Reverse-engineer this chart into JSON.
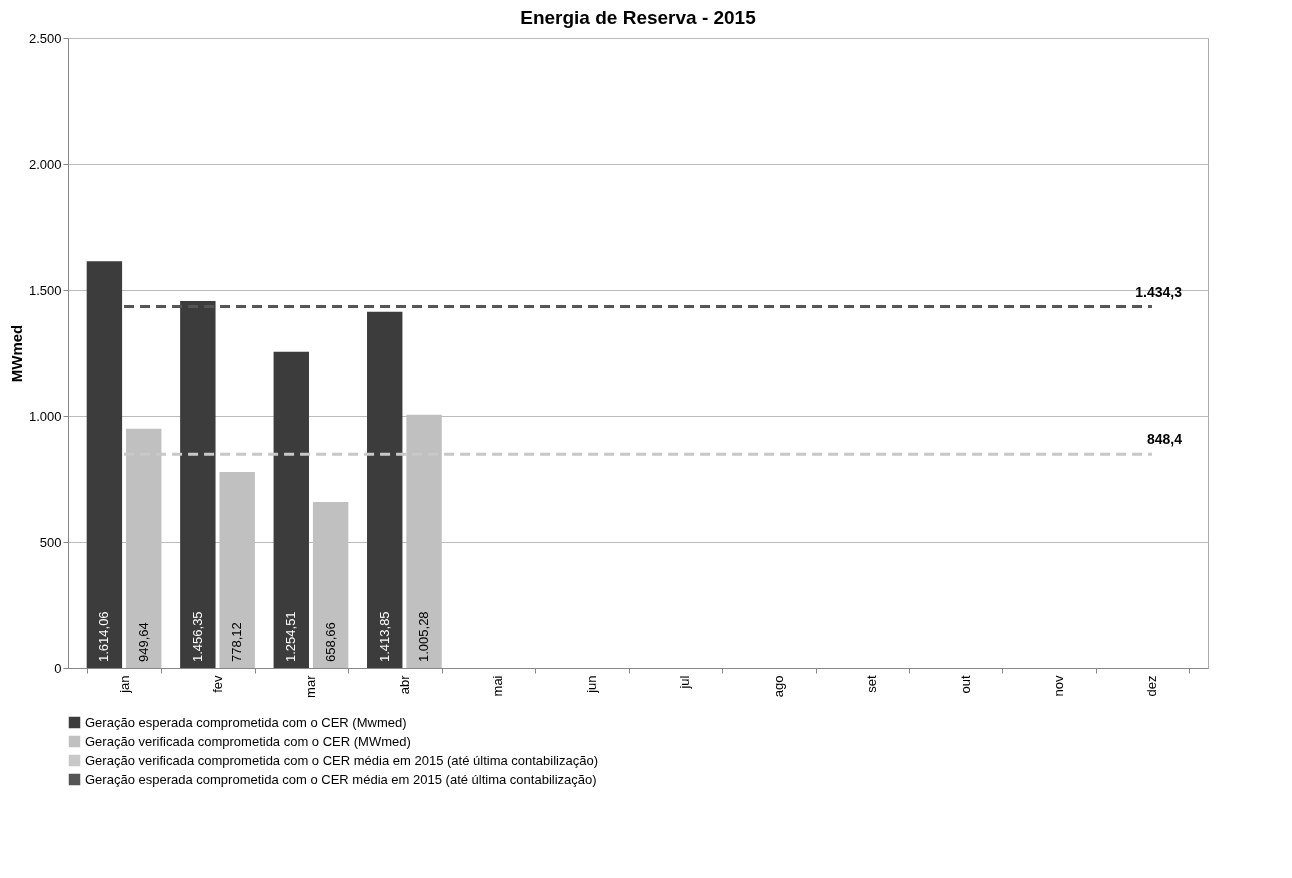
{
  "chart_data": {
    "type": "bar",
    "title": "Energia de Reserva - 2015",
    "ylabel": "MWmed",
    "categories": [
      "jan",
      "fev",
      "mar",
      "abr",
      "mai",
      "jun",
      "jul",
      "ago",
      "set",
      "out",
      "nov",
      "dez"
    ],
    "series": [
      {
        "name": "Geração esperada comprometida com o CER (Mwmed)",
        "color": "#3c3c3c",
        "values": [
          1614.06,
          1456.35,
          1254.51,
          1413.85,
          null,
          null,
          null,
          null,
          null,
          null,
          null,
          null
        ],
        "value_labels": [
          "1.614,06",
          "1.456,35",
          "1.254,51",
          "1.413,85",
          null,
          null,
          null,
          null,
          null,
          null,
          null,
          null
        ]
      },
      {
        "name": "Geração verificada comprometida com o CER (MWmed)",
        "color": "#c0c0c0",
        "values": [
          949.64,
          778.12,
          658.66,
          1005.28,
          null,
          null,
          null,
          null,
          null,
          null,
          null,
          null
        ],
        "value_labels": [
          "949,64",
          "778,12",
          "658,66",
          "1.005,28",
          null,
          null,
          null,
          null,
          null,
          null,
          null,
          null
        ]
      },
      {
        "name": "Geração verificada comprometida com o CER média em 2015 (até última contabilização)",
        "type": "line",
        "line_style": "dashed",
        "marker": "none",
        "color": "#c8c8c8",
        "values": [
          848.4,
          848.4,
          848.4,
          848.4,
          848.4,
          848.4,
          848.4,
          848.4,
          848.4,
          848.4,
          848.4,
          848.4
        ],
        "value_labels": [
          null,
          null,
          null,
          null,
          null,
          null,
          null,
          null,
          null,
          null,
          null,
          "848,4"
        ]
      },
      {
        "name": "Geração esperada comprometida com o CER média em 2015 (até última contabilização)",
        "type": "line",
        "line_style": "dashed",
        "marker": "none",
        "color": "#555555",
        "values": [
          1434.3,
          1434.3,
          1434.3,
          1434.3,
          1434.3,
          1434.3,
          1434.3,
          1434.3,
          1434.3,
          1434.3,
          1434.3,
          1434.3
        ],
        "value_labels": [
          null,
          null,
          null,
          null,
          null,
          null,
          null,
          null,
          null,
          null,
          null,
          "1.434,3"
        ]
      }
    ],
    "ylim": [
      0,
      2500
    ],
    "yticks": [
      0,
      500,
      {
        "value": 1000,
        "label": "1.000"
      },
      {
        "value": 1500,
        "label": "1.500"
      },
      {
        "value": 2000,
        "label": "2.000"
      },
      {
        "value": 2500,
        "label": "2.500"
      }
    ],
    "grid": "y",
    "legend": "bottom"
  }
}
